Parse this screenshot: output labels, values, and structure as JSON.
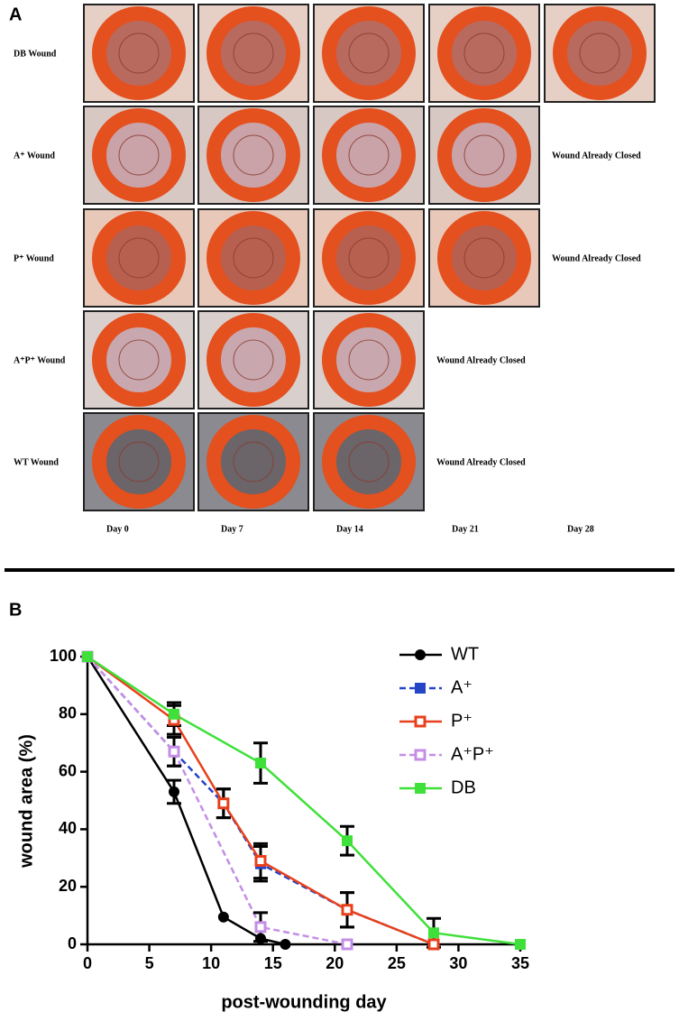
{
  "panel_a": {
    "label": "A",
    "rows": [
      {
        "label": "DB Wound"
      },
      {
        "label": "A⁺ Wound",
        "note": "Wound Already Closed"
      },
      {
        "label": "P⁺ Wound",
        "note": "Wound Already Closed"
      },
      {
        "label": "A⁺P⁺ Wound",
        "note": "Wound Already Closed"
      },
      {
        "label": "WT Wound",
        "note": "Wound Already Closed"
      }
    ],
    "columns": [
      "Day 0",
      "Day 7",
      "Day 14",
      "Day 21",
      "Day 28"
    ]
  },
  "chart_data": {
    "type": "line",
    "panel_label": "B",
    "x_label": "post-wounding day",
    "y_label": "wound area  (%)",
    "xlim": [
      0,
      35
    ],
    "ylim": [
      0,
      100
    ],
    "xticks": [
      0,
      5,
      10,
      15,
      20,
      25,
      30,
      35
    ],
    "yticks": [
      0,
      20,
      40,
      60,
      80,
      100
    ],
    "series": [
      {
        "name": "WT",
        "color": "#000000",
        "marker": "circle",
        "filled": true,
        "dashed": false,
        "x": [
          0,
          7,
          11,
          14,
          16
        ],
        "values": [
          100,
          53,
          9.5,
          2,
          0
        ],
        "errors": [
          null,
          4,
          null,
          null,
          null
        ]
      },
      {
        "name": "A⁺",
        "color": "#2545c8",
        "marker": "square",
        "filled": true,
        "dashed": true,
        "x": [
          0,
          7,
          11,
          14,
          21,
          28
        ],
        "values": [
          100,
          67,
          49,
          28,
          12,
          0
        ],
        "errors": [
          null,
          5,
          5,
          6,
          6,
          null
        ]
      },
      {
        "name": "P⁺",
        "color": "#e8401c",
        "marker": "square",
        "filled": false,
        "dashed": false,
        "x": [
          0,
          7,
          11,
          14,
          21,
          28
        ],
        "values": [
          100,
          78,
          49,
          29,
          12,
          0
        ],
        "errors": [
          null,
          5,
          5,
          6,
          6,
          null
        ]
      },
      {
        "name": "A⁺P⁺",
        "color": "#c48ee6",
        "marker": "square",
        "filled": false,
        "dashed": true,
        "x": [
          0,
          7,
          14,
          21
        ],
        "values": [
          100,
          67,
          6,
          0
        ],
        "errors": [
          null,
          5,
          5,
          null
        ]
      },
      {
        "name": "DB",
        "color": "#3fe03a",
        "marker": "square",
        "filled": true,
        "dashed": false,
        "x": [
          0,
          7,
          14,
          21,
          28,
          35
        ],
        "values": [
          100,
          80,
          63,
          36,
          4,
          0
        ],
        "errors": [
          null,
          4,
          7,
          5,
          5,
          null
        ]
      }
    ]
  }
}
